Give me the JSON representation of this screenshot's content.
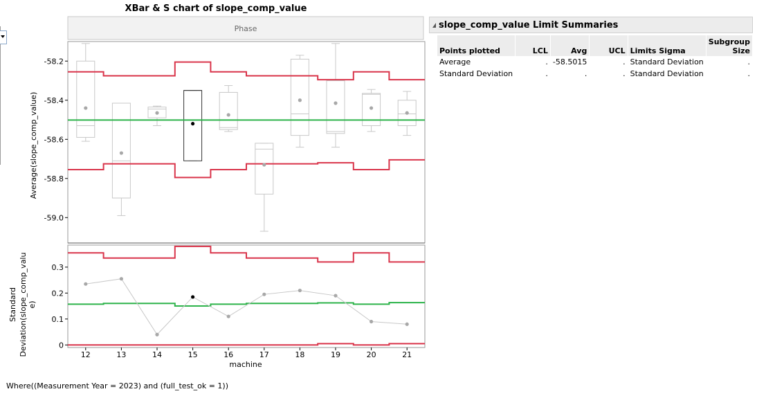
{
  "title": "XBar & S chart of slope_comp_value",
  "phase_label": "Phase",
  "where_note": "Where((Measurement Year = 2023) and (full_test_ok = 1))",
  "summary": {
    "title": "slope_comp_value Limit Summaries",
    "headers": [
      "Points plotted",
      "LCL",
      "Avg",
      "UCL",
      "Limits Sigma",
      "Subgroup Size"
    ],
    "rows": [
      {
        "points": "Average",
        "lcl": ".",
        "avg": "-58.5015",
        "ucl": ".",
        "sigma": "Standard Deviation",
        "size": "."
      },
      {
        "points": "Standard Deviation",
        "lcl": ".",
        "avg": ".",
        "ucl": ".",
        "sigma": "Standard Deviation",
        "size": "."
      }
    ]
  },
  "colors": {
    "limit": "#d9344a",
    "center": "#2db34a",
    "box": "#c8c8c8",
    "point": "#a8a8a8",
    "highlight": "#000000"
  },
  "chart_data": [
    {
      "type": "box",
      "name": "xbar",
      "xlabel": "machine",
      "ylabel": "Average(slope_comp_value)",
      "categories": [
        "12",
        "13",
        "14",
        "15",
        "16",
        "17",
        "18",
        "19",
        "20",
        "21"
      ],
      "ylim": [
        -59.13,
        -58.1
      ],
      "yticks": [
        -58.2,
        -58.4,
        -58.6,
        -58.8,
        -59.0
      ],
      "ytick_labels": [
        "-58.2",
        "-58.4",
        "-58.6",
        "-58.8",
        "-59.0"
      ],
      "center": -58.5015,
      "ucl": [
        -58.255,
        -58.275,
        -58.275,
        -58.205,
        -58.255,
        -58.275,
        -58.275,
        -58.295,
        -58.255,
        -58.295
      ],
      "lcl": [
        -58.755,
        -58.725,
        -58.725,
        -58.795,
        -58.755,
        -58.725,
        -58.725,
        -58.72,
        -58.755,
        -58.705
      ],
      "means": [
        -58.44,
        -58.67,
        -58.465,
        -58.52,
        -58.475,
        -58.73,
        -58.4,
        -58.415,
        -58.44,
        -58.465
      ],
      "highlight_index": 3,
      "boxes": [
        {
          "min": -58.61,
          "q1": -58.59,
          "median": -58.53,
          "q3": -58.2,
          "max": -58.11
        },
        {
          "min": -58.99,
          "q1": -58.9,
          "median": -58.71,
          "q3": -58.415,
          "max": -58.415
        },
        {
          "min": -58.53,
          "q1": -58.49,
          "median": -58.445,
          "q3": -58.435,
          "max": -58.43
        },
        {
          "min": -58.71,
          "q1": -58.71,
          "median": -58.35,
          "q3": -58.35,
          "max": -58.35
        },
        {
          "min": -58.56,
          "q1": -58.55,
          "median": -58.54,
          "q3": -58.36,
          "max": -58.325
        },
        {
          "min": -59.07,
          "q1": -58.88,
          "median": -58.65,
          "q3": -58.62,
          "max": -58.62
        },
        {
          "min": -58.64,
          "q1": -58.58,
          "median": -58.47,
          "q3": -58.19,
          "max": -58.17
        },
        {
          "min": -58.64,
          "q1": -58.57,
          "median": -58.56,
          "q3": -58.3,
          "max": -58.11
        },
        {
          "min": -58.56,
          "q1": -58.53,
          "median": -58.37,
          "q3": -58.365,
          "max": -58.345
        },
        {
          "min": -58.58,
          "q1": -58.53,
          "median": -58.47,
          "q3": -58.4,
          "max": -58.355
        }
      ]
    },
    {
      "type": "line",
      "name": "stdev",
      "ylabel": "Standard Deviation(slope_comp_value)",
      "categories": [
        "12",
        "13",
        "14",
        "15",
        "16",
        "17",
        "18",
        "19",
        "20",
        "21"
      ],
      "ylim": [
        -0.01,
        0.385
      ],
      "yticks": [
        0,
        0.1,
        0.2,
        0.3
      ],
      "ytick_labels": [
        "0",
        "0.1",
        "0.2",
        "0.3"
      ],
      "values": [
        0.235,
        0.255,
        0.04,
        0.185,
        0.11,
        0.195,
        0.21,
        0.19,
        0.09,
        0.08
      ],
      "center": [
        0.157,
        0.16,
        0.16,
        0.15,
        0.157,
        0.16,
        0.16,
        0.162,
        0.157,
        0.163
      ],
      "ucl": [
        0.355,
        0.335,
        0.335,
        0.38,
        0.355,
        0.335,
        0.335,
        0.32,
        0.355,
        0.32
      ],
      "lcl": [
        0,
        0,
        0,
        0,
        0,
        0,
        0,
        0.005,
        0,
        0.005
      ],
      "highlight_index": 3
    }
  ]
}
